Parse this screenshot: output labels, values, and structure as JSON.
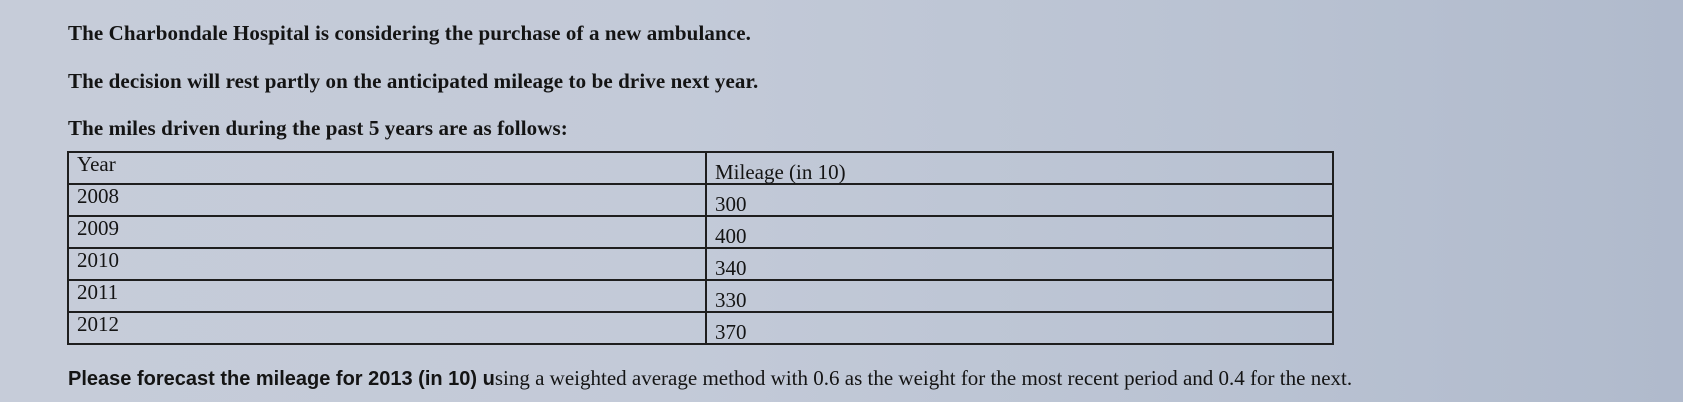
{
  "intro": {
    "line1": "The Charbondale Hospital is considering the purchase of a new ambulance.",
    "line2": "The decision will rest partly on the anticipated mileage to be drive next year.",
    "line3": "The miles driven during the past 5 years are as follows:"
  },
  "table": {
    "headers": [
      "Year",
      "Mileage (in 10)"
    ],
    "rows": [
      [
        "2008",
        "300"
      ],
      [
        "2009",
        "400"
      ],
      [
        "2010",
        "340"
      ],
      [
        "2011",
        "330"
      ],
      [
        "2012",
        "370"
      ]
    ]
  },
  "question": {
    "lead": "Please forecast the mileage for 2013 (in 10) u",
    "rest": "sing a weighted average method with 0.6 as the weight for the most recent period and 0.4 for the next."
  }
}
